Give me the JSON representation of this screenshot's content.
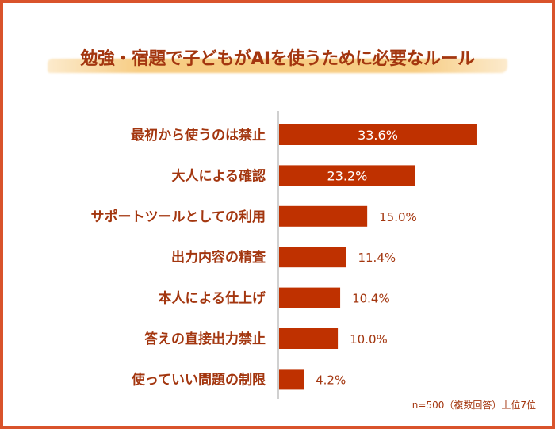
{
  "chart_data": {
    "type": "bar",
    "orientation": "horizontal",
    "title": "勉強・宿題で子どもがAIを使うために必要なルール",
    "categories": [
      "最初から使うのは禁止",
      "大人による確認",
      "サポートツールとしての利用",
      "出力内容の精査",
      "本人による仕上げ",
      "答えの直接出力禁止",
      "使っていい問題の制限"
    ],
    "values": [
      33.6,
      23.2,
      15.0,
      11.4,
      10.4,
      10.0,
      4.2
    ],
    "value_labels": [
      "33.6%",
      "23.2%",
      "15.0%",
      "11.4%",
      "10.4%",
      "10.0%",
      "4.2%"
    ],
    "unit": "%",
    "grid": false,
    "note": "n=500（複数回答）上位7位"
  },
  "colors": {
    "bar": "#bf3100",
    "text": "#a3360f",
    "frame": "#d9532b",
    "highlight": "#f6c46e"
  }
}
